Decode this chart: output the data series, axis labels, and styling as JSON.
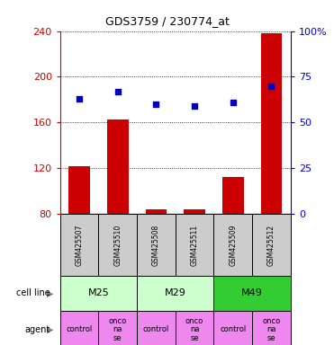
{
  "title": "GDS3759 / 230774_at",
  "samples": [
    "GSM425507",
    "GSM425510",
    "GSM425508",
    "GSM425511",
    "GSM425509",
    "GSM425512"
  ],
  "counts": [
    122,
    163,
    84,
    84,
    112,
    238
  ],
  "percentile_ranks": [
    63,
    67,
    60,
    59,
    61,
    70
  ],
  "ylim_left": [
    80,
    240
  ],
  "ylim_right": [
    0,
    100
  ],
  "yticks_left": [
    80,
    120,
    160,
    200,
    240
  ],
  "yticks_right": [
    0,
    25,
    50,
    75,
    100
  ],
  "ytick_labels_right": [
    "0",
    "25",
    "50",
    "75",
    "100%"
  ],
  "bar_color": "#cc0000",
  "dot_color": "#0000cc",
  "cell_lines": [
    [
      "M25",
      0,
      2
    ],
    [
      "M29",
      2,
      4
    ],
    [
      "M49",
      4,
      6
    ]
  ],
  "cell_line_colors": {
    "M25": "#ccffcc",
    "M29": "#ccffcc",
    "M49": "#33cc33"
  },
  "agents": [
    "control",
    "onconase",
    "control",
    "onconase",
    "control",
    "onconase"
  ],
  "agent_color": "#ee88ee",
  "sample_box_color": "#cccccc",
  "left_axis_color": "#cc0000",
  "right_axis_color": "#0000cc",
  "fig_width": 3.71,
  "fig_height": 3.84,
  "dpi": 100
}
